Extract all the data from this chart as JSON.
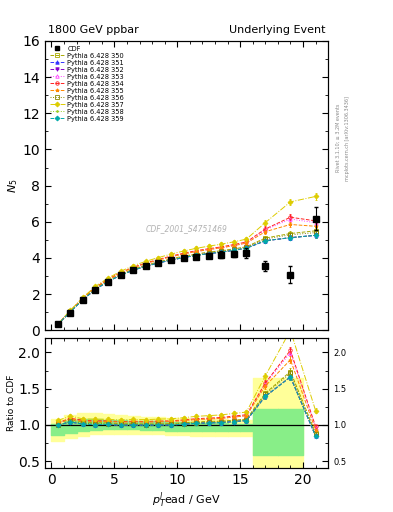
{
  "title": "1800 GeV ppbar",
  "title_right": "Underlying Event",
  "ylabel_main": "$N_5$",
  "ylabel_ratio": "Ratio to CDF",
  "xlabel": "$p_{T}^{l}$ead / GeV",
  "watermark": "CDF_2001_S4751469",
  "rivet_text": "Rivet 3.1.10; ≥ 3.2M events",
  "mcplots_text": "mcplots.cern.ch [arXiv:1306.3436]",
  "ylim_main": [
    0,
    16
  ],
  "ylim_ratio": [
    0.4,
    2.2
  ],
  "yticks_main": [
    0,
    2,
    4,
    6,
    8,
    10,
    12,
    14,
    16
  ],
  "yticks_ratio": [
    0.5,
    1.0,
    1.5,
    2.0
  ],
  "xticks": [
    0,
    5,
    10,
    15,
    20
  ],
  "cdf_x": [
    0.5,
    1.5,
    2.5,
    3.5,
    4.5,
    5.5,
    6.5,
    7.5,
    8.5,
    9.5,
    10.5,
    11.5,
    12.5,
    13.5,
    14.5,
    15.5,
    17.0,
    19.0,
    21.0
  ],
  "cdf_y": [
    0.32,
    0.98,
    1.68,
    2.25,
    2.68,
    3.05,
    3.32,
    3.55,
    3.72,
    3.88,
    3.98,
    4.05,
    4.12,
    4.18,
    4.22,
    4.28,
    3.55,
    3.08,
    6.18
  ],
  "cdf_yerr": [
    0.04,
    0.07,
    0.09,
    0.09,
    0.09,
    0.09,
    0.09,
    0.1,
    0.1,
    0.11,
    0.11,
    0.12,
    0.13,
    0.18,
    0.18,
    0.28,
    0.28,
    0.45,
    0.65
  ],
  "x_common": [
    0.5,
    1.5,
    2.5,
    3.5,
    4.5,
    5.5,
    6.5,
    7.5,
    8.5,
    9.5,
    10.5,
    11.5,
    12.5,
    13.5,
    14.5,
    15.5,
    17.0,
    19.0,
    21.0
  ],
  "pythia_configs": [
    {
      "label": "Pythia 6.428 350",
      "color": "#aaaa00",
      "linestyle": "--",
      "marker": "s",
      "mfc": "none",
      "mec": "#aaaa00",
      "y": [
        0.33,
        1.05,
        1.75,
        2.32,
        2.76,
        3.1,
        3.38,
        3.6,
        3.78,
        3.95,
        4.1,
        4.22,
        4.32,
        4.4,
        4.5,
        4.62,
        5.1,
        5.35,
        5.5
      ]
    },
    {
      "label": "Pythia 6.428 351",
      "color": "#3333ff",
      "linestyle": "--",
      "marker": "^",
      "mfc": "#3333ff",
      "mec": "#3333ff",
      "y": [
        0.32,
        1.02,
        1.7,
        2.26,
        2.7,
        3.04,
        3.32,
        3.54,
        3.72,
        3.88,
        4.02,
        4.14,
        4.24,
        4.32,
        4.42,
        4.54,
        4.95,
        5.12,
        5.25
      ]
    },
    {
      "label": "Pythia 6.428 352",
      "color": "#8800cc",
      "linestyle": "--",
      "marker": "v",
      "mfc": "#8800cc",
      "mec": "#8800cc",
      "y": [
        0.32,
        1.02,
        1.7,
        2.26,
        2.7,
        3.04,
        3.32,
        3.54,
        3.72,
        3.88,
        4.02,
        4.14,
        4.24,
        4.32,
        4.42,
        4.54,
        4.95,
        5.12,
        5.25
      ]
    },
    {
      "label": "Pythia 6.428 353",
      "color": "#ff44ff",
      "linestyle": ":",
      "marker": "^",
      "mfc": "none",
      "mec": "#ff44ff",
      "y": [
        0.33,
        1.06,
        1.77,
        2.36,
        2.81,
        3.17,
        3.46,
        3.69,
        3.88,
        4.06,
        4.22,
        4.35,
        4.46,
        4.56,
        4.68,
        4.82,
        5.55,
        6.15,
        5.95
      ]
    },
    {
      "label": "Pythia 6.428 354",
      "color": "#ff2222",
      "linestyle": "--",
      "marker": "o",
      "mfc": "none",
      "mec": "#ff2222",
      "y": [
        0.33,
        1.07,
        1.79,
        2.38,
        2.83,
        3.19,
        3.49,
        3.72,
        3.92,
        4.1,
        4.26,
        4.4,
        4.51,
        4.61,
        4.74,
        4.88,
        5.6,
        6.25,
        6.05
      ]
    },
    {
      "label": "Pythia 6.428 355",
      "color": "#ff8800",
      "linestyle": "--",
      "marker": "*",
      "mfc": "#ff8800",
      "mec": "#ff8800",
      "y": [
        0.33,
        1.06,
        1.77,
        2.36,
        2.81,
        3.17,
        3.46,
        3.69,
        3.88,
        4.06,
        4.22,
        4.35,
        4.46,
        4.56,
        4.68,
        4.82,
        5.45,
        5.85,
        5.75
      ]
    },
    {
      "label": "Pythia 6.428 356",
      "color": "#888800",
      "linestyle": ":",
      "marker": "s",
      "mfc": "none",
      "mec": "#888800",
      "y": [
        0.32,
        1.03,
        1.72,
        2.29,
        2.73,
        3.07,
        3.35,
        3.57,
        3.75,
        3.92,
        4.06,
        4.18,
        4.28,
        4.37,
        4.47,
        4.59,
        5.05,
        5.28,
        5.4
      ]
    },
    {
      "label": "Pythia 6.428 357",
      "color": "#ddcc00",
      "linestyle": "-.",
      "marker": "D",
      "mfc": "#ddcc00",
      "mec": "#ddcc00",
      "y": [
        0.34,
        1.1,
        1.82,
        2.43,
        2.89,
        3.26,
        3.57,
        3.81,
        4.02,
        4.21,
        4.38,
        4.53,
        4.65,
        4.76,
        4.89,
        5.04,
        5.95,
        7.1,
        7.4
      ]
    },
    {
      "label": "Pythia 6.428 358",
      "color": "#99cc22",
      "linestyle": ":",
      "marker": ".",
      "mfc": "#99cc22",
      "mec": "#99cc22",
      "y": [
        0.32,
        1.02,
        1.7,
        2.26,
        2.7,
        3.04,
        3.32,
        3.54,
        3.72,
        3.88,
        4.02,
        4.14,
        4.24,
        4.32,
        4.42,
        4.54,
        4.95,
        5.12,
        5.25
      ]
    },
    {
      "label": "Pythia 6.428 359",
      "color": "#00aaaa",
      "linestyle": "--",
      "marker": "D",
      "mfc": "#00aaaa",
      "mec": "#00aaaa",
      "y": [
        0.32,
        1.02,
        1.7,
        2.26,
        2.7,
        3.04,
        3.32,
        3.54,
        3.72,
        3.88,
        4.02,
        4.14,
        4.24,
        4.32,
        4.42,
        4.54,
        4.95,
        5.12,
        5.25
      ]
    }
  ],
  "band_x_yellow": [
    0.0,
    1.0,
    2.0,
    3.0,
    4.0,
    5.0,
    6.0,
    7.0,
    8.0,
    9.0,
    10.0,
    11.0,
    12.0,
    13.0,
    14.0,
    15.0,
    16.0,
    18.0,
    20.0
  ],
  "band_y_yellow_lo": [
    0.78,
    0.82,
    0.85,
    0.87,
    0.88,
    0.88,
    0.88,
    0.87,
    0.87,
    0.86,
    0.86,
    0.85,
    0.85,
    0.85,
    0.85,
    0.85,
    0.42,
    0.42,
    0.48
  ],
  "band_y_yellow_hi": [
    1.08,
    1.14,
    1.16,
    1.16,
    1.15,
    1.14,
    1.13,
    1.11,
    1.11,
    1.1,
    1.09,
    1.08,
    1.08,
    1.08,
    1.07,
    1.07,
    1.65,
    1.65,
    1.55
  ],
  "band_x_green": [
    0.0,
    1.0,
    2.0,
    3.0,
    4.0,
    5.0,
    6.0,
    7.0,
    8.0,
    9.0,
    10.0,
    11.0,
    12.0,
    13.0,
    14.0,
    15.0,
    16.0,
    18.0,
    20.0
  ],
  "band_y_green_lo": [
    0.86,
    0.89,
    0.91,
    0.93,
    0.94,
    0.94,
    0.94,
    0.93,
    0.93,
    0.92,
    0.92,
    0.91,
    0.91,
    0.91,
    0.91,
    0.91,
    0.58,
    0.58,
    0.64
  ],
  "band_y_green_hi": [
    1.01,
    1.06,
    1.08,
    1.08,
    1.07,
    1.07,
    1.06,
    1.05,
    1.05,
    1.04,
    1.04,
    1.03,
    1.03,
    1.03,
    1.02,
    1.02,
    1.22,
    1.22,
    1.18
  ]
}
